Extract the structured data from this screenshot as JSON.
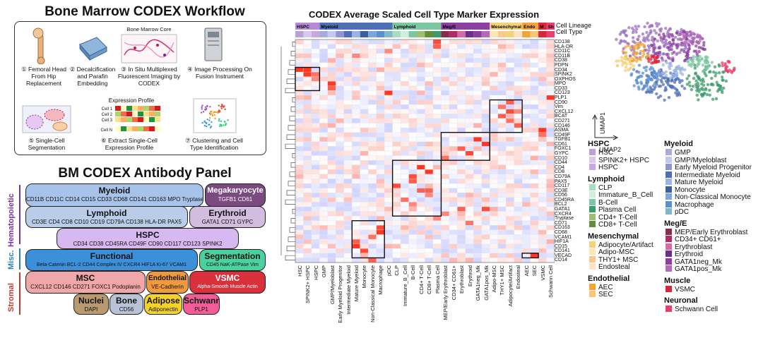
{
  "workflow": {
    "title": "Bone Marrow CODEX Workflow",
    "core_label": "Bone Marrow Core",
    "expression_label": "Expression Profile",
    "cells": [
      "Cell 1",
      "Cell 2",
      "Cell 3",
      "Cell N"
    ],
    "steps": [
      "① Femoral Head From Hip Replacement",
      "② Decalcification and Parafin Embedding",
      "③ In Situ Multiplexed Fluorescent Imaging by CODEX",
      "④ Image Processing On Fusion Instrument",
      "⑤ Single-Cell Segmentation",
      "⑥ Extract Single-Cell Expression Profile",
      "⑦ Clustering and Cell Type Identification"
    ]
  },
  "panel": {
    "title": "BM CODEX Antibody Panel",
    "sides": [
      "Hematopoietic",
      "Misc.",
      "Stromal"
    ],
    "boxes": [
      {
        "head": "Myeloid",
        "markers": "CD11B CD11C CD14 CD15 CD33 CD68 CD141 CD163 MPO Tryptase"
      },
      {
        "head": "Megakaryocyte",
        "markers": "TGFB1 CD61"
      },
      {
        "head": "Lymphoid",
        "markers": "CD3E CD4 CD8 CD10 CD19 CD79A CD138 HLA-DR PAX5"
      },
      {
        "head": "Erythroid",
        "markers": "GATA1 CD71 GYPC"
      },
      {
        "head": "HSPC",
        "markers": "CD34 CD38 CD45RA CD49F CD90 CD117 CD123 SPINK2"
      },
      {
        "head": "Functional",
        "markers": "Beta-Catenin BCL-2 CD44 Complex IV CXCR4 HIF1A Ki-67 VCAM1"
      },
      {
        "head": "Segmentation",
        "markers": "CD45 NaK-ATPase Vim"
      },
      {
        "head": "MSC",
        "markers": "CXCL12 CD146 CD271 FOXC1 Podoplanin"
      },
      {
        "head": "Endothelial",
        "markers": "VE-Cadherin"
      },
      {
        "head": "VSMC",
        "markers": "Alpha-Smooth Muscle Actin"
      },
      {
        "head": "Nuclei",
        "markers": "DAPI"
      },
      {
        "head": "Bone",
        "markers": "CD56"
      },
      {
        "head": "Adipose",
        "markers": "Adiponectin"
      },
      {
        "head": "Schwann",
        "markers": "PLP1"
      }
    ]
  },
  "heatmap": {
    "title": "CODEX Average Scaled Cell Type Marker Expression",
    "track_labels": [
      "Cell Lineage",
      "Cell Type"
    ],
    "lineage_labels": [
      "HSPC",
      "Myeloid",
      "Lymphoid",
      "Meg/E",
      "Mesenchymal",
      "Endo",
      "M",
      "Sh"
    ],
    "row_labels": [
      "CD138",
      "HLA-DR",
      "CD11C",
      "CD11B",
      "CD38",
      "PDPN",
      "CD34",
      "SPINK2",
      "OXPHOS",
      "MPO",
      "CD33",
      "CD123",
      "PLP1",
      "CD90",
      "Vim",
      "CXCL12",
      "BCAT",
      "CD271",
      "CD146",
      "ASMA",
      "CD49F",
      "TGFB1",
      "CD61",
      "FOXC1",
      "GYPC",
      "CD10",
      "CD44",
      "CD4",
      "CD8",
      "CD79A",
      "PAX5",
      "CD117",
      "CD3E",
      "CD56",
      "CD45RA",
      "BCL2",
      "GATA1",
      "CXCR4",
      "Tryptase",
      "CD71",
      "CD163",
      "CD68",
      "VCAM1",
      "HIF1A",
      "CD15",
      "CD141",
      "VECAD",
      "CD14"
    ],
    "col_labels": [
      "HSC",
      "SPINK2+ HSPC",
      "HSPC",
      "GMP",
      "GMP/Myeloblast",
      "Early Myeloid Progenitor",
      "Intermediate Myeloid",
      "Mature Myeloid",
      "Monocyte",
      "Non-Classical Monocyte",
      "Macrophage",
      "pDC",
      "CLP",
      "Immature_B_Cell",
      "B-Cell",
      "CD4+ T-Cell",
      "CD8+ T-Cell",
      "Plasma Cell",
      "MEP/Early Erythroblast",
      "CD34+ CD61+",
      "Erythroblast",
      "Erythroid",
      "GATA1neg_Mk",
      "GATA1pos_Mk",
      "Adipo-MSC",
      "THY1+ MSC",
      "Adipocyte/Artifact",
      "Endosteal",
      "AEC",
      "SEC",
      "VSMC",
      "Schwann Cell"
    ]
  },
  "umap": {
    "xlabel": "UMAP2",
    "ylabel": "UMAP1"
  },
  "legend": {
    "groups": [
      {
        "title": "HSPC",
        "items": [
          {
            "label": "HSC",
            "color": "#b9a3d6"
          },
          {
            "label": "SPINK2+ HSPC",
            "color": "#d9c9ec"
          },
          {
            "label": "HSPC",
            "color": "#c8a8e4"
          }
        ]
      },
      {
        "title": "Lymphoid",
        "items": [
          {
            "label": "CLP",
            "color": "#a8dcc3"
          },
          {
            "label": "Immature_B_Cell",
            "color": "#cfeedb"
          },
          {
            "label": "B-Cell",
            "color": "#7cc7a2"
          },
          {
            "label": "Plasma Cell",
            "color": "#3c9a6e"
          },
          {
            "label": "CD4+ T-Cell",
            "color": "#9fbf70"
          },
          {
            "label": "CD8+ T-Cell",
            "color": "#5f8f3c"
          }
        ]
      },
      {
        "title": "Mesenchymal",
        "items": [
          {
            "label": "Adipocyte/Artifact",
            "color": "#f4d27a"
          },
          {
            "label": "Adipo-MSC",
            "color": "#fbe7b6"
          },
          {
            "label": "THY1+ MSC",
            "color": "#f7c98a"
          },
          {
            "label": "Endosteal",
            "color": "#fde3c3"
          }
        ]
      },
      {
        "title": "Endothelial",
        "items": [
          {
            "label": "AEC",
            "color": "#f3a533"
          },
          {
            "label": "SEC",
            "color": "#f8c678"
          }
        ]
      },
      {
        "title": "Myeloid",
        "items": [
          {
            "label": "GMP",
            "color": "#a6acd9"
          },
          {
            "label": "GMP/Myeloblast",
            "color": "#c4c9ec"
          },
          {
            "label": "Early Myeloid Progenitor",
            "color": "#8f96cf"
          },
          {
            "label": "Intermediate Myeloid",
            "color": "#4f6fb5"
          },
          {
            "label": "Mature Myeloid",
            "color": "#9bb3e3"
          },
          {
            "label": "Monocyte",
            "color": "#3e5f9f"
          },
          {
            "label": "Non-Classical Monocyte",
            "color": "#7ea6dd"
          },
          {
            "label": "Macrophage",
            "color": "#5b8fd0"
          },
          {
            "label": "pDC",
            "color": "#7fb9c9"
          }
        ]
      },
      {
        "title": "Meg/E",
        "items": [
          {
            "label": "MEP/Early Erythroblast",
            "color": "#8b2a4b"
          },
          {
            "label": "CD34+ CD61+",
            "color": "#b02b6a"
          },
          {
            "label": "Erythroblast",
            "color": "#d46aa6"
          },
          {
            "label": "Erythroid",
            "color": "#6d2f8c"
          },
          {
            "label": "GATA1neg_Mk",
            "color": "#8c3fa0"
          },
          {
            "label": "GATA1pos_Mk",
            "color": "#b46ab9"
          }
        ]
      },
      {
        "title": "Muscle",
        "items": [
          {
            "label": "VSMC",
            "color": "#d7263d"
          }
        ]
      },
      {
        "title": "Neuronal",
        "items": [
          {
            "label": "Schwann Cell",
            "color": "#e83f6f"
          }
        ]
      }
    ]
  }
}
